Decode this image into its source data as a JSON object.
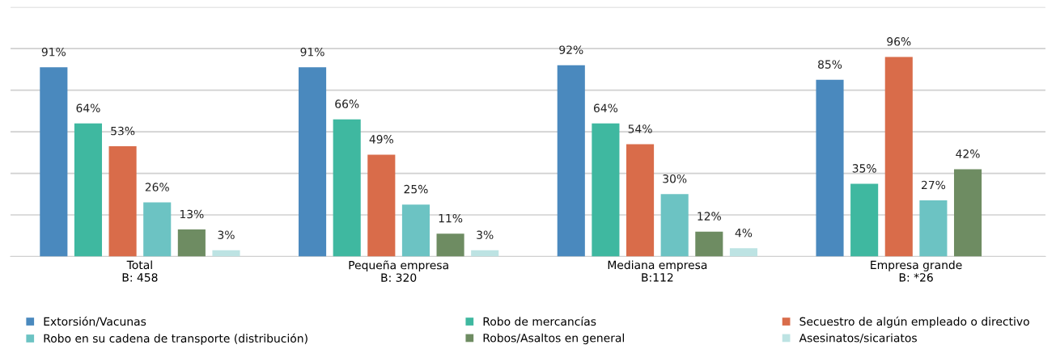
{
  "chart_data": {
    "type": "bar",
    "categories": [
      "Total\nB: 458",
      "Pequeña empresa\nB: 320",
      "Mediana empresa\nB:112",
      "Empresa grande\nB: *26"
    ],
    "series": [
      {
        "name": "Extorsión/Vacunas",
        "color": "#4a89be",
        "values": [
          91,
          91,
          92,
          85
        ],
        "value_labels": [
          "91%",
          "91%",
          "92%",
          "85%"
        ]
      },
      {
        "name": "Robo de mercancías",
        "color": "#3fb8a0",
        "values": [
          64,
          66,
          64,
          35
        ],
        "value_labels": [
          "64%",
          "66%",
          "64%",
          "35%"
        ]
      },
      {
        "name": "Secuestro de algún empleado o directivo",
        "color": "#d96c4a",
        "values": [
          53,
          49,
          54,
          96
        ],
        "value_labels": [
          "53%",
          "49%",
          "54%",
          "96%"
        ]
      },
      {
        "name": "Robo en su cadena de transporte (distribución)",
        "color": "#6cc3c3",
        "values": [
          26,
          25,
          30,
          27
        ],
        "value_labels": [
          "26%",
          "25%",
          "30%",
          "27%"
        ]
      },
      {
        "name": "Robos/Asaltos en general",
        "color": "#6e8c62",
        "values": [
          13,
          11,
          12,
          42
        ],
        "value_labels": [
          "13%",
          "11%",
          "12%",
          "42%"
        ]
      },
      {
        "name": "Asesinatos/sicariatos",
        "color": "#bde3e3",
        "values": [
          3,
          3,
          4,
          null
        ],
        "value_labels": [
          "3%",
          "3%",
          "4%",
          null
        ]
      }
    ],
    "grid": "y",
    "legend": "bottom",
    "tick_labels": "x"
  }
}
